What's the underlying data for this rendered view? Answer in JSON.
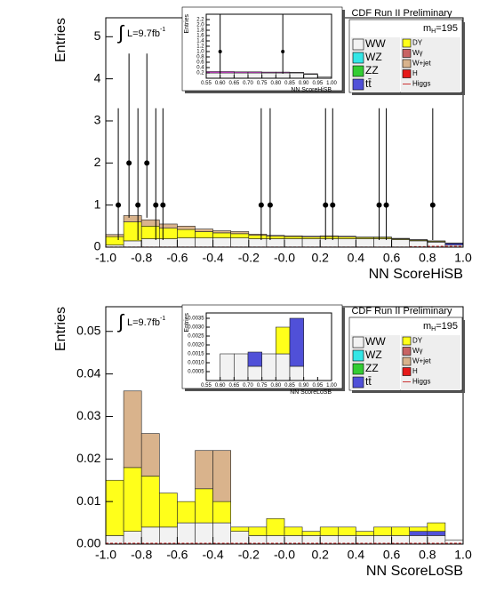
{
  "chart_data": [
    {
      "type": "histogram",
      "title": "CDF Run II Preliminary",
      "mass": {
        "symbol": "m",
        "subscript": "H",
        "text": "=195"
      },
      "lumi": {
        "symbol": "∫",
        "text": "L=9.7fb",
        "sup": "-1"
      },
      "x_label": "NN ScoreHiSB",
      "y_label": "Entries",
      "bins": [
        -1,
        -0.9,
        -0.8,
        -0.7,
        -0.6,
        -0.5,
        -0.4,
        -0.3,
        -0.2,
        -0.1,
        0,
        0.1,
        0.2,
        0.3,
        0.4,
        0.5,
        0.6,
        0.7,
        0.8,
        0.9,
        1
      ],
      "xlim": [
        -1,
        1
      ],
      "xticks": [
        {
          "value": -1,
          "label": "-1.0"
        },
        -0.8,
        -0.6,
        -0.4,
        -0.2,
        {
          "value": 0,
          "label": "-0.0"
        },
        0.2,
        0.4,
        0.6,
        0.8,
        {
          "value": 1,
          "label": "1.0"
        }
      ],
      "ylim": [
        0,
        5.45
      ],
      "yticks": [
        0,
        1,
        2,
        3,
        4,
        5
      ],
      "series": [
        {
          "name": "WW",
          "color": "#f2f2f2",
          "values": [
            0.05,
            0.15,
            0.2,
            0.2,
            0.22,
            0.22,
            0.22,
            0.22,
            0.2,
            0.2,
            0.2,
            0.2,
            0.2,
            0.2,
            0.2,
            0.2,
            0.18,
            0.15,
            0.12,
            0.05
          ]
        },
        {
          "name": "WZ",
          "color": "#33e6e6",
          "values": [
            0,
            0,
            0,
            0,
            0,
            0,
            0,
            0,
            0,
            0,
            0,
            0,
            0,
            0,
            0,
            0,
            0,
            0,
            0,
            0
          ]
        },
        {
          "name": "ZZ",
          "color": "#33cc33",
          "values": [
            0,
            0,
            0,
            0,
            0,
            0,
            0,
            0,
            0,
            0,
            0,
            0,
            0,
            0,
            0,
            0,
            0,
            0,
            0,
            0
          ]
        },
        {
          "name": "tt̄",
          "color": "#5050d8",
          "values": [
            0,
            0,
            0,
            0,
            0,
            0,
            0,
            0,
            0,
            0,
            0,
            0,
            0,
            0,
            0,
            0,
            0,
            0,
            0,
            0.04
          ]
        },
        {
          "name": "DY",
          "color": "#ffff1a",
          "values": [
            0.2,
            0.45,
            0.3,
            0.25,
            0.2,
            0.15,
            0.12,
            0.1,
            0.08,
            0.06,
            0.05,
            0.04,
            0.05,
            0.04,
            0.03,
            0.03,
            0.02,
            0.02,
            0.02,
            0.01
          ]
        },
        {
          "name": "Wγ",
          "color": "#c86464",
          "values": [
            0,
            0,
            0,
            0,
            0,
            0,
            0,
            0,
            0,
            0,
            0,
            0,
            0,
            0,
            0,
            0,
            0,
            0,
            0,
            0
          ]
        },
        {
          "name": "W+jet",
          "color": "#d9b38c",
          "values": [
            0.05,
            0.15,
            0.15,
            0.1,
            0.08,
            0.06,
            0.05,
            0.05,
            0.03,
            0.02,
            0.02,
            0.02,
            0.02,
            0.02,
            0.01,
            0.01,
            0.01,
            0.01,
            0.01,
            0
          ]
        },
        {
          "name": "H",
          "color": "#e61a1a",
          "values": [
            0,
            0,
            0,
            0,
            0,
            0,
            0,
            0,
            0,
            0,
            0,
            0,
            0,
            0,
            0,
            0,
            0,
            0,
            0,
            0
          ]
        },
        {
          "name": "Higgs",
          "color": "#cc3333",
          "stacked": false,
          "values": [
            0,
            0,
            0,
            0,
            0,
            0,
            0,
            0,
            0,
            0,
            0,
            0,
            0,
            0,
            0,
            0,
            0,
            0.01,
            0.02,
            0.02
          ]
        }
      ],
      "data": {
        "color": "#000000",
        "x": [
          -0.93,
          -0.87,
          -0.82,
          -0.77,
          -0.72,
          -0.68,
          -0.13,
          -0.08,
          0.23,
          0.27,
          0.53,
          0.57,
          0.83
        ],
        "values": [
          1,
          2,
          1,
          2,
          1,
          1,
          1,
          1,
          1,
          1,
          1,
          1,
          1
        ],
        "errors_up": [
          2.3,
          2.6,
          2.3,
          2.6,
          2.3,
          2.3,
          2.3,
          2.3,
          2.3,
          2.3,
          2.3,
          2.3,
          2.3
        ],
        "errors_down": [
          0.83,
          1.3,
          0.83,
          1.3,
          0.83,
          0.83,
          0.83,
          0.83,
          0.83,
          0.83,
          0.83,
          0.83,
          0.83
        ]
      },
      "inset": {
        "x_label": "NN ScoreHiSB",
        "y_label": "Entries",
        "bins": [
          0.55,
          0.6,
          0.65,
          0.7,
          0.75,
          0.8,
          0.85,
          0.9,
          0.95,
          1
        ],
        "xlim": [
          0.55,
          1
        ],
        "xticks": [
          0.55,
          {
            "value": 0.6,
            "label": "0.60"
          },
          0.65,
          {
            "value": 0.7,
            "label": "0.70"
          },
          0.75,
          {
            "value": 0.8,
            "label": "0.80"
          },
          0.85,
          {
            "value": 0.9,
            "label": "0.90"
          },
          0.95,
          {
            "value": 1,
            "label": "1.00"
          }
        ],
        "ylim": [
          0,
          2.4
        ],
        "yticks": [
          0.2,
          0.4,
          0.6,
          0.8,
          {
            "value": 1,
            "label": "1.0"
          },
          1.2,
          1.4,
          1.6,
          1.8,
          {
            "value": 2,
            "label": "2.0"
          },
          2.2
        ],
        "series": [
          {
            "color": "#f2f2f2",
            "values": [
              0.2,
              0.2,
              0.2,
              0.2,
              0.2,
              0.2,
              0.2,
              0.15,
              0.05
            ]
          },
          {
            "color": "#ee44ee",
            "values": [
              0.05,
              0.05,
              0.04,
              0.04,
              0.03,
              0.03,
              0.02,
              0.02,
              0
            ]
          }
        ],
        "data": {
          "color": "#000000",
          "x": [
            0.6,
            0.825
          ],
          "values": [
            1,
            1
          ],
          "errors_up": [
            2.3,
            2.3
          ],
          "errors_down": [
            0.83,
            0.83
          ]
        }
      }
    },
    {
      "type": "histogram",
      "title": "CDF Run II Preliminary",
      "mass": {
        "symbol": "m",
        "subscript": "H",
        "text": "=195"
      },
      "lumi": {
        "symbol": "∫",
        "text": "L=9.7fb",
        "sup": "-1"
      },
      "x_label": "NN ScoreLoSB",
      "y_label": "Entries",
      "bins": [
        -1,
        -0.9,
        -0.8,
        -0.7,
        -0.6,
        -0.5,
        -0.4,
        -0.3,
        -0.2,
        -0.1,
        0,
        0.1,
        0.2,
        0.3,
        0.4,
        0.5,
        0.6,
        0.7,
        0.8,
        0.9,
        1
      ],
      "xlim": [
        -1,
        1
      ],
      "xticks": [
        {
          "value": -1,
          "label": "-1.0"
        },
        -0.8,
        -0.6,
        -0.4,
        -0.2,
        {
          "value": 0,
          "label": "-0.0"
        },
        0.2,
        0.4,
        0.6,
        0.8,
        {
          "value": 1,
          "label": "1.0"
        }
      ],
      "ylim": [
        0,
        0.0558
      ],
      "yticks": [
        {
          "value": 0,
          "label": "0.00"
        },
        0.01,
        0.02,
        0.03,
        0.04,
        0.05
      ],
      "series": [
        {
          "name": "WW",
          "color": "#f2f2f2",
          "values": [
            0.002,
            0.003,
            0.004,
            0.004,
            0.005,
            0.005,
            0.005,
            0.003,
            0.002,
            0.002,
            0.002,
            0.002,
            0.002,
            0.002,
            0.002,
            0.002,
            0.002,
            0.002,
            0.002,
            0.001
          ]
        },
        {
          "name": "WZ",
          "color": "#33e6e6",
          "values": [
            0,
            0,
            0,
            0,
            0,
            0,
            0,
            0,
            0,
            0,
            0,
            0,
            0,
            0,
            0,
            0,
            0,
            0,
            0,
            0
          ]
        },
        {
          "name": "ZZ",
          "color": "#33cc33",
          "values": [
            0,
            0,
            0,
            0,
            0,
            0,
            0,
            0,
            0,
            0,
            0,
            0,
            0,
            0,
            0,
            0,
            0,
            0,
            0,
            0
          ]
        },
        {
          "name": "tt̄",
          "color": "#5050d8",
          "values": [
            0,
            0,
            0,
            0,
            0,
            0,
            0,
            0,
            0,
            0,
            0,
            0,
            0,
            0,
            0,
            0,
            0,
            0.001,
            0.001,
            0
          ]
        },
        {
          "name": "DY",
          "color": "#ffff1a",
          "values": [
            0.013,
            0.015,
            0.012,
            0.008,
            0.005,
            0.008,
            0.005,
            0.001,
            0.002,
            0.004,
            0.002,
            0.001,
            0.002,
            0.002,
            0.001,
            0.002,
            0.002,
            0.001,
            0.002,
            0
          ]
        },
        {
          "name": "Wγ",
          "color": "#c86464",
          "values": [
            0,
            0,
            0,
            0,
            0,
            0,
            0,
            0,
            0,
            0,
            0,
            0,
            0,
            0,
            0,
            0,
            0,
            0,
            0,
            0
          ]
        },
        {
          "name": "W+jet",
          "color": "#d9b38c",
          "values": [
            0,
            0.018,
            0.01,
            0,
            0,
            0.009,
            0.012,
            0,
            0,
            0,
            0,
            0,
            0,
            0,
            0,
            0,
            0,
            0,
            0,
            0
          ]
        },
        {
          "name": "H",
          "color": "#e61a1a",
          "values": [
            0,
            0,
            0,
            0,
            0,
            0,
            0,
            0,
            0,
            0,
            0,
            0,
            0,
            0,
            0,
            0,
            0,
            0,
            0,
            0
          ]
        },
        {
          "name": "Higgs",
          "color": "#cc3333",
          "stacked": false,
          "values": [
            0.0002,
            0.0002,
            0.0002,
            0.0002,
            0.0002,
            0.0002,
            0.0002,
            0.0002,
            0.0002,
            0.0002,
            0.0002,
            0.0002,
            0.0002,
            0.0002,
            0.0002,
            0.0002,
            0.0002,
            0.0002,
            0.0002,
            0.0002
          ]
        }
      ],
      "inset": {
        "x_label": "NN ScoreLoSB",
        "y_label": "Entries",
        "bins": [
          0.55,
          0.6,
          0.65,
          0.7,
          0.75,
          0.8,
          0.85,
          0.9,
          0.95,
          1
        ],
        "xlim": [
          0.55,
          1
        ],
        "xticks": [
          0.55,
          {
            "value": 0.6,
            "label": "0.60"
          },
          0.65,
          {
            "value": 0.7,
            "label": "0.70"
          },
          0.75,
          {
            "value": 0.8,
            "label": "0.80"
          },
          0.85,
          {
            "value": 0.9,
            "label": "0.90"
          },
          0.95,
          {
            "value": 1,
            "label": "1.00"
          }
        ],
        "ylim": [
          0,
          0.0038
        ],
        "yticks": [
          0.0005,
          {
            "value": 0.001,
            "label": "0.0010"
          },
          0.0015,
          {
            "value": 0.002,
            "label": "0.0020"
          },
          0.0025,
          {
            "value": 0.003,
            "label": "0.0030"
          },
          0.0035
        ],
        "series": [
          {
            "color": "#f2f2f2",
            "values": [
              0,
              0.0015,
              0.0015,
              0.0008,
              0.0015,
              0.0015,
              0.0008,
              0,
              0
            ]
          },
          {
            "color": "#ffff1a",
            "values": [
              0,
              0,
              0,
              0,
              0,
              0.0015,
              0,
              0,
              0
            ]
          },
          {
            "color": "#5050d8",
            "values": [
              0,
              0,
              0,
              0.0008,
              0,
              0,
              0.0027,
              0,
              0
            ]
          }
        ]
      }
    }
  ]
}
